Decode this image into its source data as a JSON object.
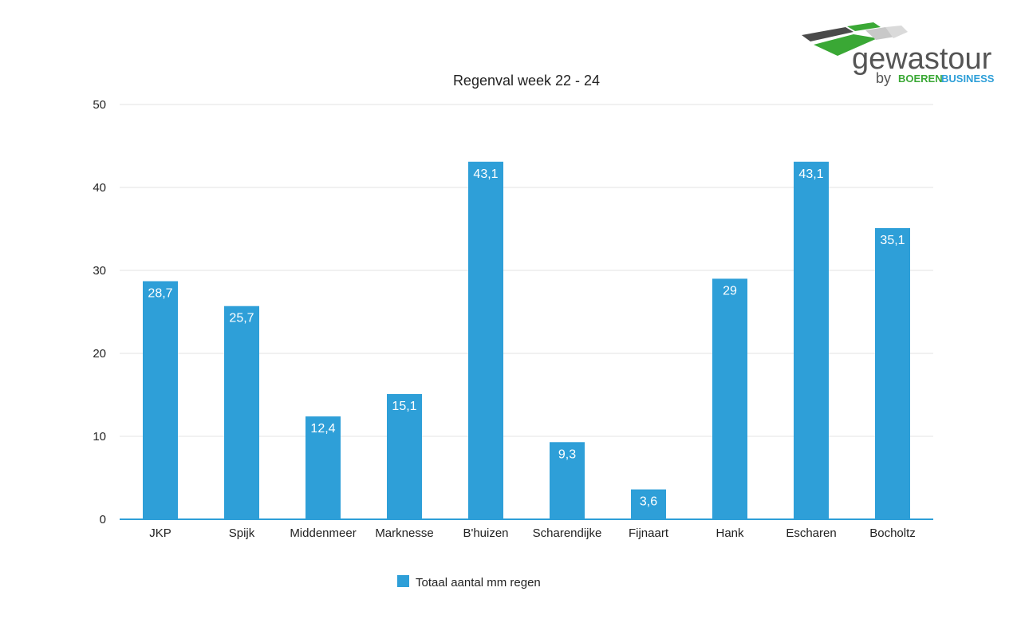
{
  "logo": {
    "name": "gewastour",
    "by": "by",
    "partner_part1": "BOEREN",
    "partner_part2": "BUSINESS"
  },
  "colors": {
    "bar": "#2e9fd8",
    "grid": "#e3e3e3",
    "axis": "#2e9fd8",
    "logo_green": "#3aa835",
    "logo_grey": "#555555"
  },
  "chart_data": {
    "type": "bar",
    "title": "Regenval week 22 - 24",
    "categories": [
      "JKP",
      "Spijk",
      "Middenmeer",
      "Marknesse",
      "B'huizen",
      "Scharendijke",
      "Fijnaart",
      "Hank",
      "Escharen",
      "Bocholtz"
    ],
    "series": [
      {
        "name": "Totaal aantal mm regen",
        "values": [
          28.7,
          25.7,
          12.4,
          15.1,
          43.1,
          9.3,
          3.6,
          29,
          43.1,
          35.1
        ],
        "labels": [
          "28,7",
          "25,7",
          "12,4",
          "15,1",
          "43,1",
          "9,3",
          "3,6",
          "29",
          "43,1",
          "35,1"
        ]
      }
    ],
    "ylim": [
      0,
      50
    ],
    "yticks": [
      0,
      10,
      20,
      30,
      40,
      50
    ],
    "xlabel": "",
    "ylabel": "",
    "grid": true,
    "legend_position": "bottom"
  }
}
